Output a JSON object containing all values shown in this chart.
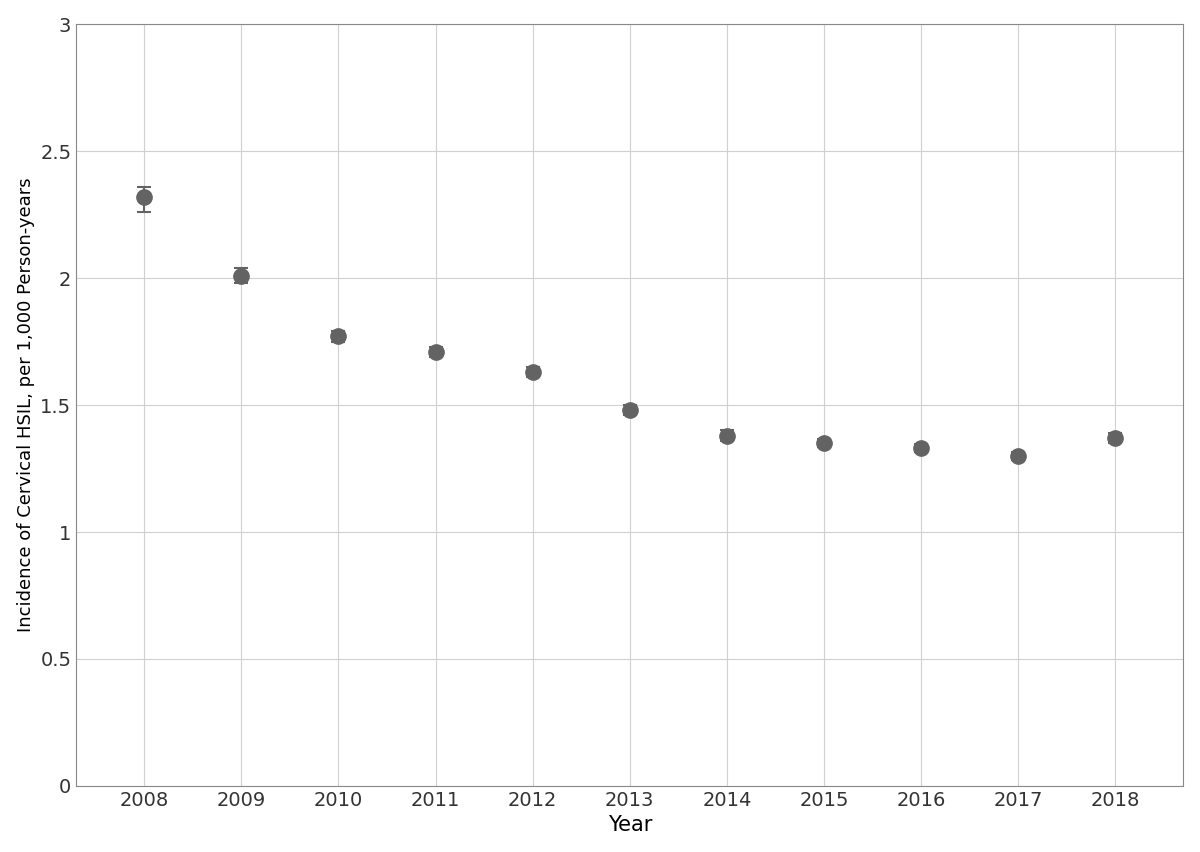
{
  "years": [
    2008,
    2009,
    2010,
    2011,
    2012,
    2013,
    2014,
    2015,
    2016,
    2017,
    2018
  ],
  "values": [
    2.32,
    2.01,
    1.77,
    1.71,
    1.63,
    1.48,
    1.38,
    1.35,
    1.33,
    1.3,
    1.37
  ],
  "err_lower": [
    0.06,
    0.03,
    0.02,
    0.02,
    0.02,
    0.02,
    0.02,
    0.015,
    0.015,
    0.015,
    0.02
  ],
  "err_upper": [
    0.04,
    0.03,
    0.02,
    0.02,
    0.02,
    0.02,
    0.02,
    0.015,
    0.015,
    0.015,
    0.02
  ],
  "marker_color": "#636363",
  "marker_size": 11,
  "capsize": 5,
  "elinewidth": 1.5,
  "capthick": 1.5,
  "xlabel": "Year",
  "ylabel": "Incidence of Cervical HSIL, per 1,000 Person-years",
  "ylim": [
    0,
    3.0
  ],
  "yticks": [
    0,
    0.5,
    1.0,
    1.5,
    2.0,
    2.5,
    3.0
  ],
  "ytick_labels": [
    "0",
    "0.5",
    "1",
    "1.5",
    "2",
    "2.5",
    "3"
  ],
  "grid_color": "#d0d0d0",
  "background_color": "#ffffff",
  "xlabel_fontsize": 15,
  "ylabel_fontsize": 13,
  "tick_fontsize": 14,
  "spine_color": "#888888"
}
